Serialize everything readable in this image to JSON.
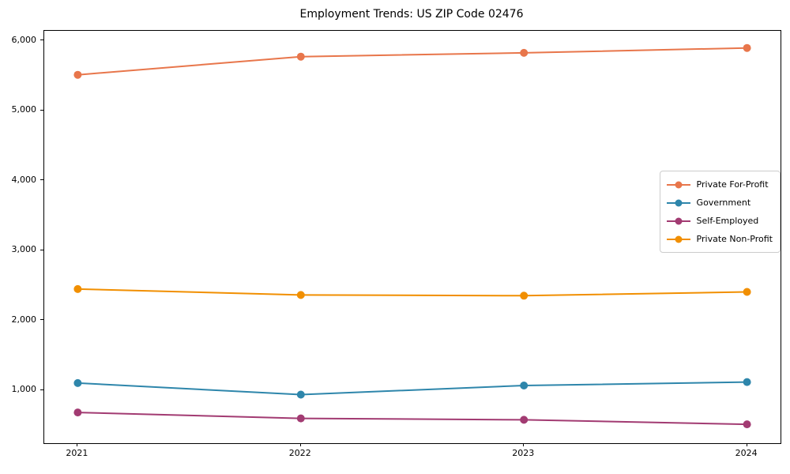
{
  "chart_data": {
    "type": "line",
    "title": "Employment Trends: US ZIP Code 02476",
    "x": [
      2021,
      2022,
      2023,
      2024
    ],
    "categories": [
      "2021",
      "2022",
      "2023",
      "2024"
    ],
    "series": [
      {
        "name": "Private For-Profit",
        "color": "#E8764B",
        "values": [
          5510,
          5770,
          5825,
          5895
        ]
      },
      {
        "name": "Government",
        "color": "#2E86AB",
        "values": [
          1100,
          935,
          1065,
          1115
        ]
      },
      {
        "name": "Self-Employed",
        "color": "#A23B72",
        "values": [
          680,
          595,
          575,
          510
        ]
      },
      {
        "name": "Private Non-Profit",
        "color": "#F18F01",
        "values": [
          2445,
          2360,
          2350,
          2405
        ]
      }
    ],
    "yticks": [
      1000,
      2000,
      3000,
      4000,
      5000,
      6000
    ],
    "ytick_labels": [
      "1,000",
      "2,000",
      "3,000",
      "4,000",
      "5,000",
      "6,000"
    ],
    "xlabel": "",
    "ylabel": "",
    "ylim": [
      240,
      6140
    ],
    "xlim": [
      2020.85,
      2024.15
    ],
    "grid": false,
    "legend_position": "center right",
    "spine_color": "#000000",
    "background_color": "#ffffff"
  }
}
